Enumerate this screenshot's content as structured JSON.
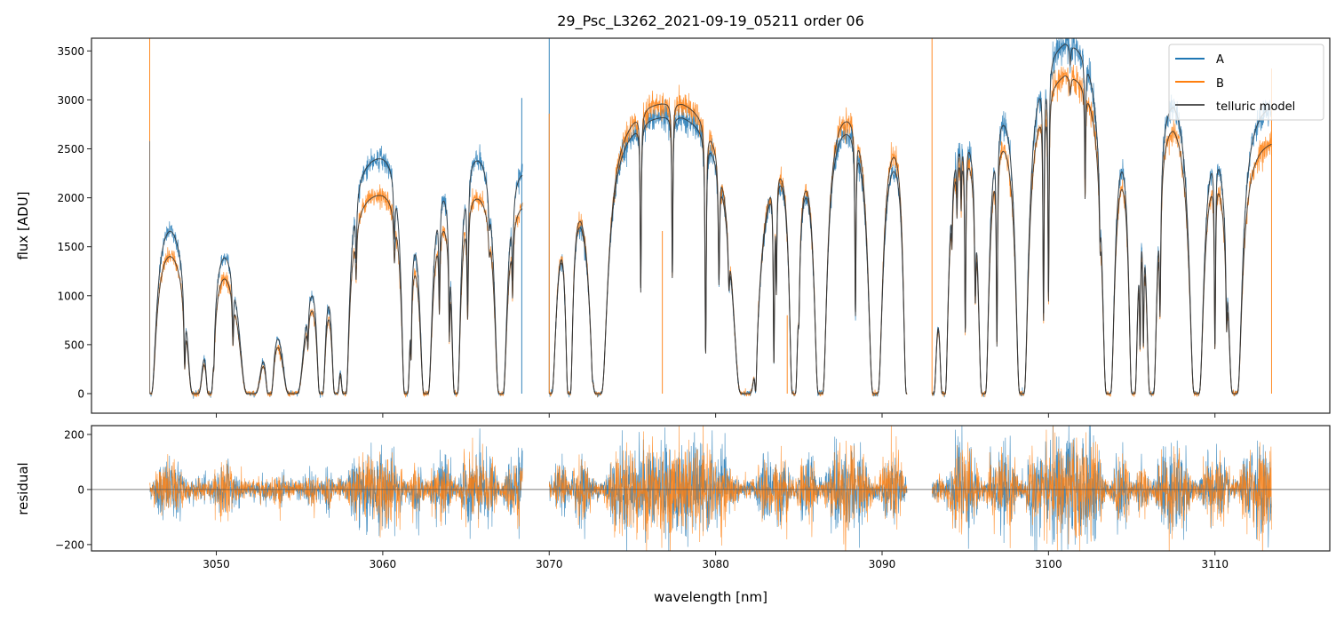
{
  "chart_data": {
    "type": "line",
    "title": "29_Psc_L3262_2021-09-19_05211  order 06",
    "xlabel": "wavelength [nm]",
    "ylabel": "flux [ADU]",
    "residual_ylabel": "residual",
    "xlim": [
      3042.5,
      3116.9
    ],
    "ylim": [
      -200,
      3630
    ],
    "residual_ylim": [
      -223,
      232
    ],
    "xticks": [
      3050,
      3060,
      3070,
      3080,
      3090,
      3100,
      3110
    ],
    "xtick_labels": [
      "3050",
      "3060",
      "3070",
      "3080",
      "3090",
      "3100",
      "3110"
    ],
    "yticks": [
      0,
      500,
      1000,
      1500,
      2000,
      2500,
      3000,
      3500
    ],
    "ytick_labels": [
      "0",
      "500",
      "1000",
      "1500",
      "2000",
      "2500",
      "3000",
      "3500"
    ],
    "residual_yticks": [
      -200,
      0,
      200
    ],
    "residual_ytick_labels": [
      "−200",
      "0",
      "200"
    ],
    "legend": {
      "placement": "top-right",
      "entries": [
        "A",
        "B",
        "telluric model"
      ]
    },
    "colors": {
      "A": "#1f77b4",
      "B": "#ff7f0e",
      "model": "#333333",
      "zero_line": "#555555"
    },
    "segments": [
      {
        "range": [
          3046.0,
          3068.4
        ],
        "continuum_x": [
          3046,
          3047.2,
          3050.5,
          3053.5,
          3056,
          3058.8,
          3060,
          3062,
          3066,
          3068.4
        ],
        "continuum_A": [
          2150,
          2250,
          2250,
          1950,
          2300,
          2700,
          2750,
          2750,
          2850,
          2750
        ],
        "continuum_B": [
          1850,
          1900,
          1900,
          1650,
          1950,
          2280,
          2320,
          2330,
          2380,
          2330
        ]
      },
      {
        "range": [
          3070.0,
          3091.5
        ],
        "continuum_x": [
          3070,
          3072,
          3074,
          3076,
          3078,
          3080,
          3083,
          3085,
          3087.5,
          3090,
          3091.5
        ],
        "continuum_A": [
          2550,
          2650,
          2900,
          3000,
          3050,
          3000,
          2950,
          3000,
          3150,
          3150,
          3100
        ],
        "continuum_B": [
          2600,
          2750,
          3000,
          3150,
          3200,
          3150,
          3050,
          3100,
          3300,
          3350,
          3300
        ]
      },
      {
        "range": [
          3093.0,
          3113.4
        ],
        "continuum_x": [
          3093,
          3095,
          3097.5,
          3099,
          3101,
          3103,
          3105,
          3107.5,
          3110,
          3112,
          3113.4
        ],
        "continuum_A": [
          3000,
          3200,
          3500,
          3600,
          3850,
          3800,
          3400,
          3600,
          3300,
          3150,
          3100
        ],
        "continuum_B": [
          2900,
          3000,
          3150,
          3250,
          3500,
          3450,
          3150,
          3300,
          2950,
          2750,
          2700
        ]
      }
    ],
    "absorption_lines_center_tau_gamma": [
      [
        3045.95,
        30,
        0.08
      ],
      [
        3048.1,
        1.2,
        0.04
      ],
      [
        3048.75,
        30,
        0.1
      ],
      [
        3049.6,
        30,
        0.05
      ],
      [
        3049.85,
        0.5,
        0.03
      ],
      [
        3051.0,
        0.7,
        0.04
      ],
      [
        3052.1,
        40,
        0.12
      ],
      [
        3053.2,
        30,
        0.05
      ],
      [
        3054.6,
        40,
        0.12
      ],
      [
        3055.5,
        0.5,
        0.04
      ],
      [
        3056.3,
        30,
        0.05
      ],
      [
        3057.2,
        30,
        0.05
      ],
      [
        3057.7,
        30,
        0.05
      ],
      [
        3058.4,
        0.35,
        0.04
      ],
      [
        3060.7,
        0.3,
        0.05
      ],
      [
        3061.4,
        30,
        0.05
      ],
      [
        3061.7,
        0.9,
        0.03
      ],
      [
        3062.6,
        30,
        0.07
      ],
      [
        3063.4,
        0.7,
        0.04
      ],
      [
        3064.0,
        0.9,
        0.03
      ],
      [
        3064.4,
        30,
        0.05
      ],
      [
        3065.1,
        0.9,
        0.04
      ],
      [
        3066.4,
        0.16,
        0.05
      ],
      [
        3067.1,
        30,
        0.07
      ],
      [
        3067.8,
        0.5,
        0.04
      ],
      [
        3070.0,
        30,
        0.08
      ],
      [
        3071.2,
        30,
        0.04
      ],
      [
        3072.6,
        0.7,
        0.04
      ],
      [
        3072.95,
        30,
        0.1
      ],
      [
        3075.5,
        1.0,
        0.03
      ],
      [
        3077.4,
        0.9,
        0.03
      ],
      [
        3079.4,
        1.9,
        0.03
      ],
      [
        3080.2,
        0.7,
        0.04
      ],
      [
        3080.8,
        0.35,
        0.05
      ],
      [
        3081.8,
        40,
        0.13
      ],
      [
        3082.4,
        3.0,
        0.04
      ],
      [
        3083.5,
        1.9,
        0.03
      ],
      [
        3083.65,
        0.7,
        0.03
      ],
      [
        3084.7,
        30,
        0.05
      ],
      [
        3085.0,
        0.5,
        0.04
      ],
      [
        3086.3,
        30,
        0.07
      ],
      [
        3088.4,
        1.2,
        0.03
      ],
      [
        3089.6,
        30,
        0.08
      ],
      [
        3091.55,
        30,
        0.05
      ],
      [
        3093.0,
        30,
        0.06
      ],
      [
        3093.7,
        30,
        0.05
      ],
      [
        3094.2,
        0.25,
        0.03
      ],
      [
        3094.5,
        0.25,
        0.03
      ],
      [
        3094.75,
        0.25,
        0.03
      ],
      [
        3095.0,
        1.4,
        0.03
      ],
      [
        3095.6,
        0.7,
        0.04
      ],
      [
        3096.1,
        30,
        0.06
      ],
      [
        3096.9,
        1.6,
        0.03
      ],
      [
        3098.4,
        30,
        0.07
      ],
      [
        3099.7,
        1.4,
        0.03
      ],
      [
        3100.0,
        1.2,
        0.03
      ],
      [
        3101.3,
        0.06,
        0.05
      ],
      [
        3102.2,
        0.45,
        0.03
      ],
      [
        3103.1,
        0.25,
        0.04
      ],
      [
        3103.6,
        30,
        0.07
      ],
      [
        3105.1,
        30,
        0.05
      ],
      [
        3105.5,
        1.2,
        0.03
      ],
      [
        3105.7,
        1.2,
        0.03
      ],
      [
        3106.2,
        30,
        0.06
      ],
      [
        3106.7,
        0.9,
        0.04
      ],
      [
        3108.9,
        30,
        0.08
      ],
      [
        3110.0,
        1.6,
        0.03
      ],
      [
        3110.7,
        0.7,
        0.04
      ],
      [
        3111.2,
        30,
        0.08
      ]
    ],
    "spikes": [
      {
        "series": "B",
        "x": 3046.0,
        "y": 3630
      },
      {
        "series": "model",
        "x": 3046.0,
        "y": 2580
      },
      {
        "series": "A",
        "x": 3068.35,
        "y": 3020
      },
      {
        "series": "A",
        "x": 3070.0,
        "y": 3630
      },
      {
        "series": "B",
        "x": 3070.0,
        "y": 2860
      },
      {
        "series": "B",
        "x": 3076.8,
        "y": 1660
      },
      {
        "series": "B",
        "x": 3084.3,
        "y": 800
      },
      {
        "series": "B",
        "x": 3093.0,
        "y": 3630
      },
      {
        "series": "B",
        "x": 3113.4,
        "y": 3320
      }
    ],
    "noise": {
      "base": 15,
      "relative": 0.02
    }
  }
}
